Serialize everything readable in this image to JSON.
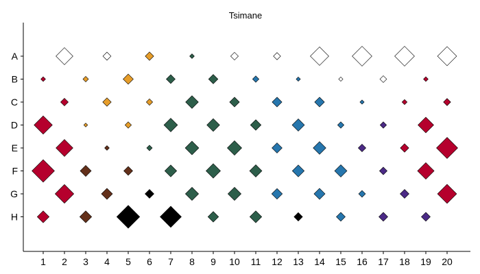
{
  "chart_data": {
    "type": "scatter",
    "title": "Tsimane",
    "xlabel": "",
    "ylabel": "",
    "x_categories": [
      "1",
      "2",
      "3",
      "4",
      "5",
      "6",
      "7",
      "8",
      "9",
      "10",
      "11",
      "12",
      "13",
      "14",
      "15",
      "16",
      "17",
      "18",
      "19",
      "20"
    ],
    "y_categories": [
      "A",
      "B",
      "C",
      "D",
      "E",
      "F",
      "G",
      "H"
    ],
    "xlim": [
      0,
      21
    ],
    "ylim": [
      0,
      9
    ],
    "grid": false,
    "legend": "none",
    "colors": {
      "white": "#ffffff",
      "red": "#b5002d",
      "orange": "#e69d2a",
      "green": "#2d5e4a",
      "blue": "#2676ad",
      "brown": "#63301a",
      "black": "#000000",
      "purple": "#4b2a86"
    },
    "points": [
      {
        "x": 2,
        "y": "A",
        "size": 0.8,
        "color": "white"
      },
      {
        "x": 4,
        "y": "A",
        "size": 0.38,
        "color": "white"
      },
      {
        "x": 6,
        "y": "A",
        "size": 0.4,
        "color": "orange"
      },
      {
        "x": 8,
        "y": "A",
        "size": 0.22,
        "color": "green"
      },
      {
        "x": 10,
        "y": "A",
        "size": 0.36,
        "color": "white"
      },
      {
        "x": 12,
        "y": "A",
        "size": 0.34,
        "color": "white"
      },
      {
        "x": 14,
        "y": "A",
        "size": 0.87,
        "color": "white"
      },
      {
        "x": 16,
        "y": "A",
        "size": 0.93,
        "color": "white"
      },
      {
        "x": 18,
        "y": "A",
        "size": 0.93,
        "color": "white"
      },
      {
        "x": 20,
        "y": "A",
        "size": 0.9,
        "color": "white"
      },
      {
        "x": 1,
        "y": "B",
        "size": 0.22,
        "color": "red"
      },
      {
        "x": 3,
        "y": "B",
        "size": 0.26,
        "color": "orange"
      },
      {
        "x": 5,
        "y": "B",
        "size": 0.48,
        "color": "orange"
      },
      {
        "x": 7,
        "y": "B",
        "size": 0.42,
        "color": "green"
      },
      {
        "x": 9,
        "y": "B",
        "size": 0.44,
        "color": "green"
      },
      {
        "x": 11,
        "y": "B",
        "size": 0.3,
        "color": "blue"
      },
      {
        "x": 13,
        "y": "B",
        "size": 0.2,
        "color": "blue"
      },
      {
        "x": 15,
        "y": "B",
        "size": 0.2,
        "color": "white"
      },
      {
        "x": 17,
        "y": "B",
        "size": 0.32,
        "color": "white"
      },
      {
        "x": 19,
        "y": "B",
        "size": 0.22,
        "color": "red"
      },
      {
        "x": 2,
        "y": "C",
        "size": 0.36,
        "color": "red"
      },
      {
        "x": 4,
        "y": "C",
        "size": 0.4,
        "color": "orange"
      },
      {
        "x": 6,
        "y": "C",
        "size": 0.3,
        "color": "orange"
      },
      {
        "x": 8,
        "y": "C",
        "size": 0.6,
        "color": "green"
      },
      {
        "x": 10,
        "y": "C",
        "size": 0.46,
        "color": "green"
      },
      {
        "x": 12,
        "y": "C",
        "size": 0.46,
        "color": "blue"
      },
      {
        "x": 14,
        "y": "C",
        "size": 0.46,
        "color": "blue"
      },
      {
        "x": 16,
        "y": "C",
        "size": 0.2,
        "color": "blue"
      },
      {
        "x": 18,
        "y": "C",
        "size": 0.24,
        "color": "red"
      },
      {
        "x": 20,
        "y": "C",
        "size": 0.34,
        "color": "red"
      },
      {
        "x": 1,
        "y": "D",
        "size": 0.86,
        "color": "red"
      },
      {
        "x": 3,
        "y": "D",
        "size": 0.18,
        "color": "orange"
      },
      {
        "x": 5,
        "y": "D",
        "size": 0.3,
        "color": "orange"
      },
      {
        "x": 7,
        "y": "D",
        "size": 0.64,
        "color": "green"
      },
      {
        "x": 9,
        "y": "D",
        "size": 0.6,
        "color": "green"
      },
      {
        "x": 11,
        "y": "D",
        "size": 0.5,
        "color": "green"
      },
      {
        "x": 13,
        "y": "D",
        "size": 0.58,
        "color": "blue"
      },
      {
        "x": 15,
        "y": "D",
        "size": 0.3,
        "color": "blue"
      },
      {
        "x": 17,
        "y": "D",
        "size": 0.3,
        "color": "purple"
      },
      {
        "x": 19,
        "y": "D",
        "size": 0.74,
        "color": "red"
      },
      {
        "x": 2,
        "y": "E",
        "size": 0.8,
        "color": "red"
      },
      {
        "x": 4,
        "y": "E",
        "size": 0.22,
        "color": "brown"
      },
      {
        "x": 6,
        "y": "E",
        "size": 0.26,
        "color": "green"
      },
      {
        "x": 8,
        "y": "E",
        "size": 0.64,
        "color": "green"
      },
      {
        "x": 10,
        "y": "E",
        "size": 0.68,
        "color": "green"
      },
      {
        "x": 12,
        "y": "E",
        "size": 0.48,
        "color": "blue"
      },
      {
        "x": 14,
        "y": "E",
        "size": 0.6,
        "color": "blue"
      },
      {
        "x": 16,
        "y": "E",
        "size": 0.36,
        "color": "purple"
      },
      {
        "x": 18,
        "y": "E",
        "size": 0.4,
        "color": "red"
      },
      {
        "x": 20,
        "y": "E",
        "size": 1.0,
        "color": "red"
      },
      {
        "x": 1,
        "y": "F",
        "size": 1.06,
        "color": "red"
      },
      {
        "x": 3,
        "y": "F",
        "size": 0.52,
        "color": "brown"
      },
      {
        "x": 5,
        "y": "F",
        "size": 0.42,
        "color": "brown"
      },
      {
        "x": 7,
        "y": "F",
        "size": 0.56,
        "color": "green"
      },
      {
        "x": 9,
        "y": "F",
        "size": 0.68,
        "color": "green"
      },
      {
        "x": 11,
        "y": "F",
        "size": 0.58,
        "color": "green"
      },
      {
        "x": 13,
        "y": "F",
        "size": 0.56,
        "color": "blue"
      },
      {
        "x": 15,
        "y": "F",
        "size": 0.58,
        "color": "blue"
      },
      {
        "x": 17,
        "y": "F",
        "size": 0.36,
        "color": "purple"
      },
      {
        "x": 19,
        "y": "F",
        "size": 0.78,
        "color": "red"
      },
      {
        "x": 2,
        "y": "G",
        "size": 0.88,
        "color": "red"
      },
      {
        "x": 4,
        "y": "G",
        "size": 0.52,
        "color": "brown"
      },
      {
        "x": 6,
        "y": "G",
        "size": 0.42,
        "color": "black"
      },
      {
        "x": 8,
        "y": "G",
        "size": 0.62,
        "color": "green"
      },
      {
        "x": 10,
        "y": "G",
        "size": 0.62,
        "color": "green"
      },
      {
        "x": 12,
        "y": "G",
        "size": 0.5,
        "color": "blue"
      },
      {
        "x": 14,
        "y": "G",
        "size": 0.52,
        "color": "blue"
      },
      {
        "x": 16,
        "y": "G",
        "size": 0.32,
        "color": "blue"
      },
      {
        "x": 18,
        "y": "G",
        "size": 0.42,
        "color": "purple"
      },
      {
        "x": 20,
        "y": "G",
        "size": 0.9,
        "color": "red"
      },
      {
        "x": 1,
        "y": "H",
        "size": 0.56,
        "color": "red"
      },
      {
        "x": 3,
        "y": "H",
        "size": 0.56,
        "color": "brown"
      },
      {
        "x": 5,
        "y": "H",
        "size": 1.08,
        "color": "black"
      },
      {
        "x": 7,
        "y": "H",
        "size": 1.0,
        "color": "black"
      },
      {
        "x": 9,
        "y": "H",
        "size": 0.5,
        "color": "green"
      },
      {
        "x": 11,
        "y": "H",
        "size": 0.56,
        "color": "green"
      },
      {
        "x": 13,
        "y": "H",
        "size": 0.4,
        "color": "black"
      },
      {
        "x": 15,
        "y": "H",
        "size": 0.42,
        "color": "blue"
      },
      {
        "x": 17,
        "y": "H",
        "size": 0.42,
        "color": "purple"
      },
      {
        "x": 19,
        "y": "H",
        "size": 0.42,
        "color": "purple"
      }
    ]
  }
}
